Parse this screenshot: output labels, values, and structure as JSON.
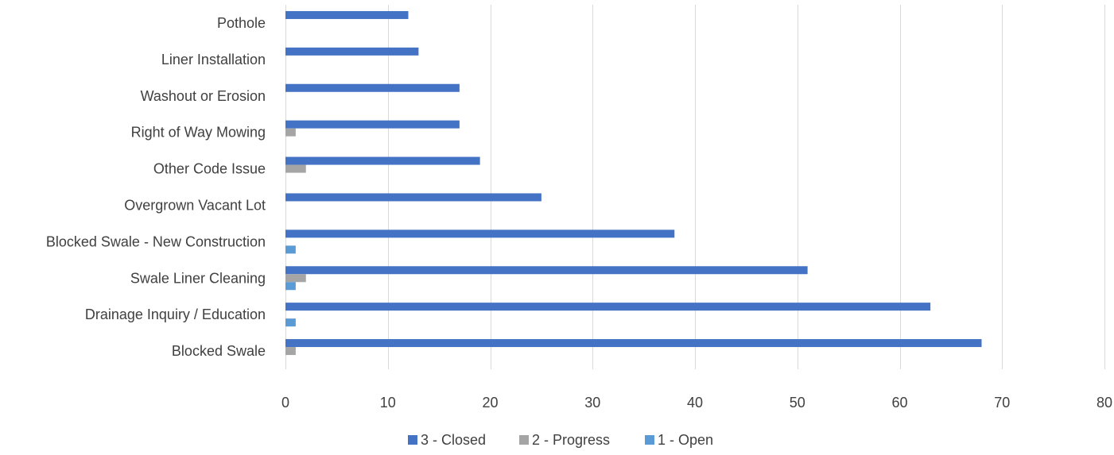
{
  "chart_data": {
    "type": "bar",
    "orientation": "horizontal",
    "categories": [
      "Blocked Swale",
      "Drainage Inquiry / Education",
      "Swale Liner Cleaning",
      "Blocked Swale - New Construction",
      "Overgrown Vacant Lot",
      "Other Code Issue",
      "Right of Way Mowing",
      "Washout or Erosion",
      "Liner Installation",
      "Pothole"
    ],
    "series": [
      {
        "name": "3 - Closed",
        "color": "#4472C4",
        "values": [
          68,
          63,
          51,
          38,
          25,
          19,
          17,
          17,
          13,
          12
        ]
      },
      {
        "name": "2 - Progress",
        "color": "#A5A5A5",
        "values": [
          1,
          0,
          2,
          0,
          0,
          2,
          1,
          0,
          0,
          0
        ]
      },
      {
        "name": "1 - Open",
        "color": "#5B9BD5",
        "values": [
          0,
          1,
          1,
          1,
          0,
          0,
          0,
          0,
          0,
          0
        ]
      }
    ],
    "xlim": [
      0,
      80
    ],
    "xticks": [
      "0",
      "10",
      "20",
      "30",
      "40",
      "50",
      "60",
      "70",
      "80"
    ],
    "grid": true,
    "legend_position": "bottom"
  }
}
